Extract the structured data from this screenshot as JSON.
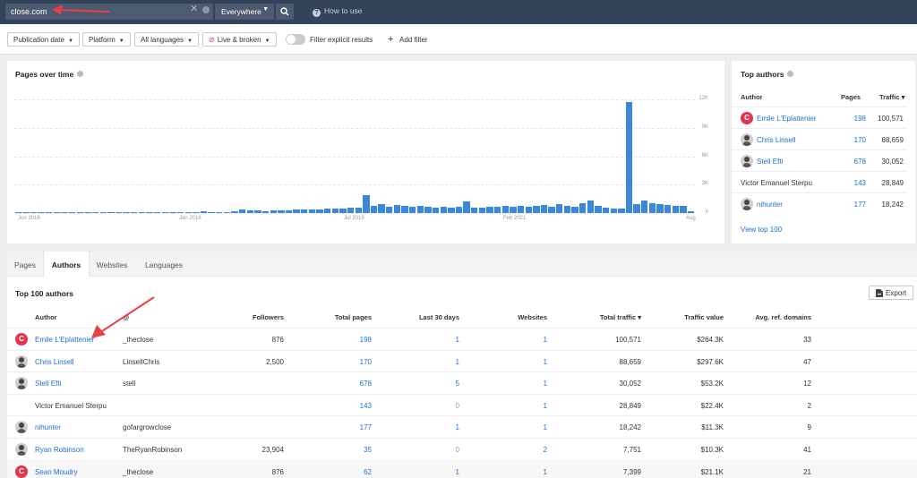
{
  "topbar": {
    "search_value": "close.com",
    "scope": "Everywhere",
    "how_to_use": "How to use"
  },
  "filters": {
    "publication_date": "Publication date",
    "platform": "Platform",
    "languages": "All languages",
    "live_broken": "Live & broken",
    "explicit": "Filter explicit results",
    "add_filter": "Add filter"
  },
  "chart_data": {
    "type": "bar",
    "title": "Pages over time",
    "x_tick_labels": [
      "Jun 2016",
      "Jan 2018",
      "Jul 2019",
      "Feb 2021",
      "Aug"
    ],
    "y_tick_labels": [
      "12K",
      "9K",
      "6K",
      "3K",
      "0"
    ],
    "ylim": [
      0,
      12000
    ],
    "values": [
      40,
      30,
      50,
      40,
      60,
      30,
      50,
      40,
      30,
      60,
      50,
      40,
      60,
      50,
      40,
      30,
      50,
      60,
      40,
      50,
      100,
      80,
      60,
      120,
      150,
      90,
      100,
      130,
      200,
      350,
      300,
      260,
      220,
      280,
      250,
      300,
      350,
      400,
      380,
      420,
      450,
      500,
      480,
      550,
      600,
      1900,
      800,
      900,
      700,
      850,
      750,
      700,
      800,
      650,
      600,
      700,
      550,
      650,
      1200,
      600,
      550,
      650,
      700,
      750,
      650,
      800,
      700,
      750,
      850,
      700,
      900,
      750,
      700,
      1000,
      1300,
      800,
      600,
      500,
      450,
      11700,
      900,
      1300,
      1000,
      900,
      850,
      800,
      750,
      200
    ],
    "color": "#3a87db"
  },
  "top_authors": {
    "title": "Top authors",
    "col_author": "Author",
    "col_pages": "Pages",
    "col_traffic": "Traffic ▾",
    "rows": [
      {
        "name": "Emile L'Eplattenier",
        "pages": "198",
        "traffic": "100,571",
        "avatar": "close-logo"
      },
      {
        "name": "Chris Linsell",
        "pages": "170",
        "traffic": "88,659",
        "avatar": "person"
      },
      {
        "name": "Steli Efti",
        "pages": "678",
        "traffic": "30,052",
        "avatar": "person"
      },
      {
        "name": "Victor Emanuel Sterpu",
        "pages": "143",
        "traffic": "28,849",
        "avatar": "none"
      },
      {
        "name": "nihunter",
        "pages": "177",
        "traffic": "18,242",
        "avatar": "person"
      }
    ],
    "view_top": "View top 100"
  },
  "tabs": [
    "Pages",
    "Authors",
    "Websites",
    "Languages"
  ],
  "table": {
    "title": "Top 100 authors",
    "export": "Export",
    "headers": {
      "author": "Author",
      "at": "@",
      "followers": "Followers",
      "total_pages": "Total pages",
      "last30": "Last 30 days",
      "websites": "Websites",
      "total_traffic": "Total traffic ▾",
      "traffic_value": "Traffic value",
      "avg_ref": "Avg. ref. domains"
    },
    "rows": [
      {
        "author": "Emile L'Eplattenier",
        "handle": "_theclose",
        "followers": "876",
        "total_pages": "198",
        "last30": "1",
        "websites": "1",
        "total_traffic": "100,571",
        "traffic_value": "$264.3K",
        "avg_ref": "33"
      },
      {
        "author": "Chris Linsell",
        "handle": "LinsellChris",
        "followers": "2,500",
        "total_pages": "170",
        "last30": "1",
        "websites": "1",
        "total_traffic": "88,659",
        "traffic_value": "$297.6K",
        "avg_ref": "47"
      },
      {
        "author": "Steli Efti",
        "handle": "steli",
        "followers": "",
        "total_pages": "678",
        "last30": "5",
        "websites": "1",
        "total_traffic": "30,052",
        "traffic_value": "$53.2K",
        "avg_ref": "12"
      },
      {
        "author": "Victor Emanuel Sterpu",
        "handle": "",
        "followers": "",
        "total_pages": "143",
        "last30": "0",
        "websites": "1",
        "total_traffic": "28,849",
        "traffic_value": "$22.4K",
        "avg_ref": "2"
      },
      {
        "author": "nihunter",
        "handle": "gofargrowclose",
        "followers": "",
        "total_pages": "177",
        "last30": "1",
        "websites": "1",
        "total_traffic": "18,242",
        "traffic_value": "$11.3K",
        "avg_ref": "9"
      },
      {
        "author": "Ryan Robinson",
        "handle": "TheRyanRobinson",
        "followers": "23,904",
        "total_pages": "35",
        "last30": "0",
        "websites": "2",
        "total_traffic": "7,751",
        "traffic_value": "$10.3K",
        "avg_ref": "41"
      },
      {
        "author": "Sean Moudry",
        "handle": "_theclose",
        "followers": "876",
        "total_pages": "62",
        "last30": "1",
        "websites": "1",
        "total_traffic": "7,399",
        "traffic_value": "$21.1K",
        "avg_ref": "21"
      }
    ]
  }
}
